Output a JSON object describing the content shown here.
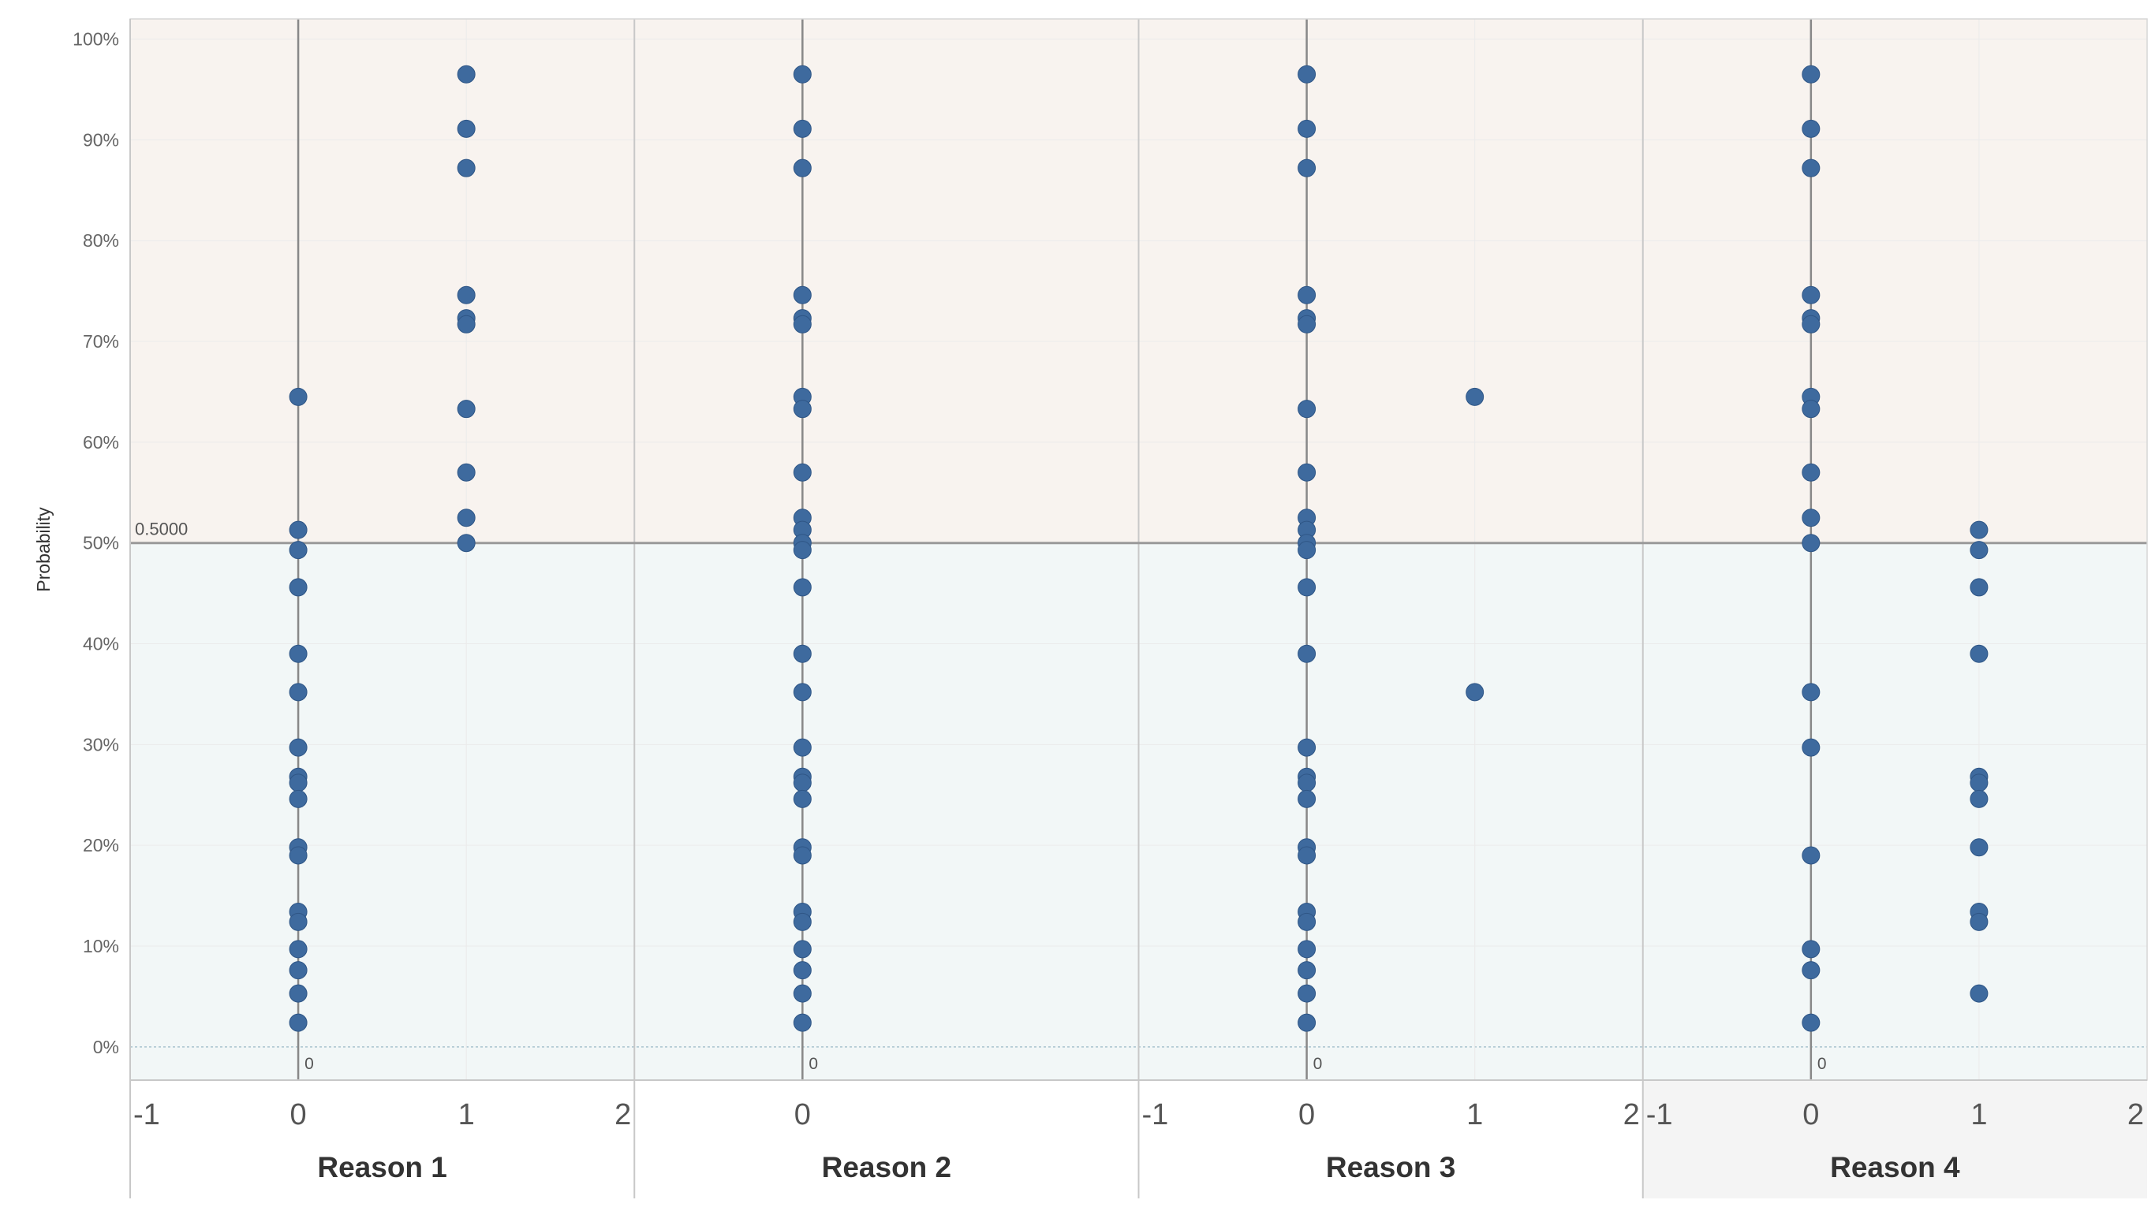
{
  "chart_data": {
    "type": "scatter",
    "ylabel": "Probability",
    "ylim": [
      -0.033,
      1.02
    ],
    "y_ticks": [
      "0%",
      "10%",
      "20%",
      "30%",
      "40%",
      "50%",
      "60%",
      "70%",
      "80%",
      "90%",
      "100%"
    ],
    "y_tick_values": [
      0,
      0.1,
      0.2,
      0.3,
      0.4,
      0.5,
      0.6,
      0.7,
      0.8,
      0.9,
      1.0
    ],
    "reference_line": {
      "value": 0.5,
      "label": "0.5000"
    },
    "zero_label": "0",
    "bands": {
      "upper_color": "#f8f3ef",
      "lower_color": "#f2f7f7",
      "threshold": 0.5
    },
    "marker_color": "#3e6a9e",
    "facets": [
      {
        "name": "Reason 1",
        "xlim": [
          -1,
          2
        ],
        "x_ticks": [
          "-1",
          "0",
          "1",
          "2"
        ],
        "x_tick_values": [
          -1,
          0,
          1,
          2
        ],
        "points": [
          [
            0,
            0.645
          ],
          [
            0,
            0.513
          ],
          [
            0,
            0.493
          ],
          [
            0,
            0.456
          ],
          [
            0,
            0.39
          ],
          [
            0,
            0.352
          ],
          [
            0,
            0.297
          ],
          [
            0,
            0.268
          ],
          [
            0,
            0.262
          ],
          [
            0,
            0.246
          ],
          [
            0,
            0.198
          ],
          [
            0,
            0.19
          ],
          [
            0,
            0.134
          ],
          [
            0,
            0.124
          ],
          [
            0,
            0.097
          ],
          [
            0,
            0.076
          ],
          [
            0,
            0.053
          ],
          [
            0,
            0.024
          ],
          [
            1,
            0.965
          ],
          [
            1,
            0.911
          ],
          [
            1,
            0.872
          ],
          [
            1,
            0.746
          ],
          [
            1,
            0.723
          ],
          [
            1,
            0.717
          ],
          [
            1,
            0.633
          ],
          [
            1,
            0.57
          ],
          [
            1,
            0.525
          ],
          [
            1,
            0.5
          ]
        ]
      },
      {
        "name": "Reason 2",
        "xlim": [
          -1,
          2
        ],
        "x_ticks": [
          "0"
        ],
        "x_tick_values": [
          0
        ],
        "points": [
          [
            0,
            0.965
          ],
          [
            0,
            0.911
          ],
          [
            0,
            0.872
          ],
          [
            0,
            0.746
          ],
          [
            0,
            0.723
          ],
          [
            0,
            0.717
          ],
          [
            0,
            0.645
          ],
          [
            0,
            0.633
          ],
          [
            0,
            0.57
          ],
          [
            0,
            0.525
          ],
          [
            0,
            0.513
          ],
          [
            0,
            0.5
          ],
          [
            0,
            0.493
          ],
          [
            0,
            0.456
          ],
          [
            0,
            0.39
          ],
          [
            0,
            0.352
          ],
          [
            0,
            0.297
          ],
          [
            0,
            0.268
          ],
          [
            0,
            0.262
          ],
          [
            0,
            0.246
          ],
          [
            0,
            0.198
          ],
          [
            0,
            0.19
          ],
          [
            0,
            0.134
          ],
          [
            0,
            0.124
          ],
          [
            0,
            0.097
          ],
          [
            0,
            0.076
          ],
          [
            0,
            0.053
          ],
          [
            0,
            0.024
          ]
        ]
      },
      {
        "name": "Reason 3",
        "xlim": [
          -1,
          2
        ],
        "x_ticks": [
          "-1",
          "0",
          "1",
          "2"
        ],
        "x_tick_values": [
          -1,
          0,
          1,
          2
        ],
        "points": [
          [
            0,
            0.965
          ],
          [
            0,
            0.911
          ],
          [
            0,
            0.872
          ],
          [
            0,
            0.746
          ],
          [
            0,
            0.723
          ],
          [
            0,
            0.717
          ],
          [
            0,
            0.633
          ],
          [
            0,
            0.57
          ],
          [
            0,
            0.525
          ],
          [
            0,
            0.513
          ],
          [
            0,
            0.5
          ],
          [
            0,
            0.493
          ],
          [
            0,
            0.456
          ],
          [
            0,
            0.39
          ],
          [
            0,
            0.297
          ],
          [
            0,
            0.268
          ],
          [
            0,
            0.262
          ],
          [
            0,
            0.246
          ],
          [
            0,
            0.198
          ],
          [
            0,
            0.19
          ],
          [
            0,
            0.134
          ],
          [
            0,
            0.124
          ],
          [
            0,
            0.097
          ],
          [
            0,
            0.076
          ],
          [
            0,
            0.053
          ],
          [
            0,
            0.024
          ],
          [
            1,
            0.645
          ],
          [
            1,
            0.352
          ]
        ]
      },
      {
        "name": "Reason 4",
        "xlim": [
          -1,
          2
        ],
        "x_ticks": [
          "-1",
          "0",
          "1",
          "2"
        ],
        "x_tick_values": [
          -1,
          0,
          1,
          2
        ],
        "points": [
          [
            0,
            0.965
          ],
          [
            0,
            0.911
          ],
          [
            0,
            0.872
          ],
          [
            0,
            0.746
          ],
          [
            0,
            0.723
          ],
          [
            0,
            0.717
          ],
          [
            0,
            0.645
          ],
          [
            0,
            0.633
          ],
          [
            0,
            0.57
          ],
          [
            0,
            0.525
          ],
          [
            0,
            0.5
          ],
          [
            0,
            0.352
          ],
          [
            0,
            0.297
          ],
          [
            0,
            0.19
          ],
          [
            0,
            0.097
          ],
          [
            0,
            0.076
          ],
          [
            0,
            0.024
          ],
          [
            1,
            0.513
          ],
          [
            1,
            0.493
          ],
          [
            1,
            0.456
          ],
          [
            1,
            0.39
          ],
          [
            1,
            0.268
          ],
          [
            1,
            0.262
          ],
          [
            1,
            0.246
          ],
          [
            1,
            0.198
          ],
          [
            1,
            0.134
          ],
          [
            1,
            0.124
          ],
          [
            1,
            0.053
          ]
        ]
      }
    ]
  }
}
